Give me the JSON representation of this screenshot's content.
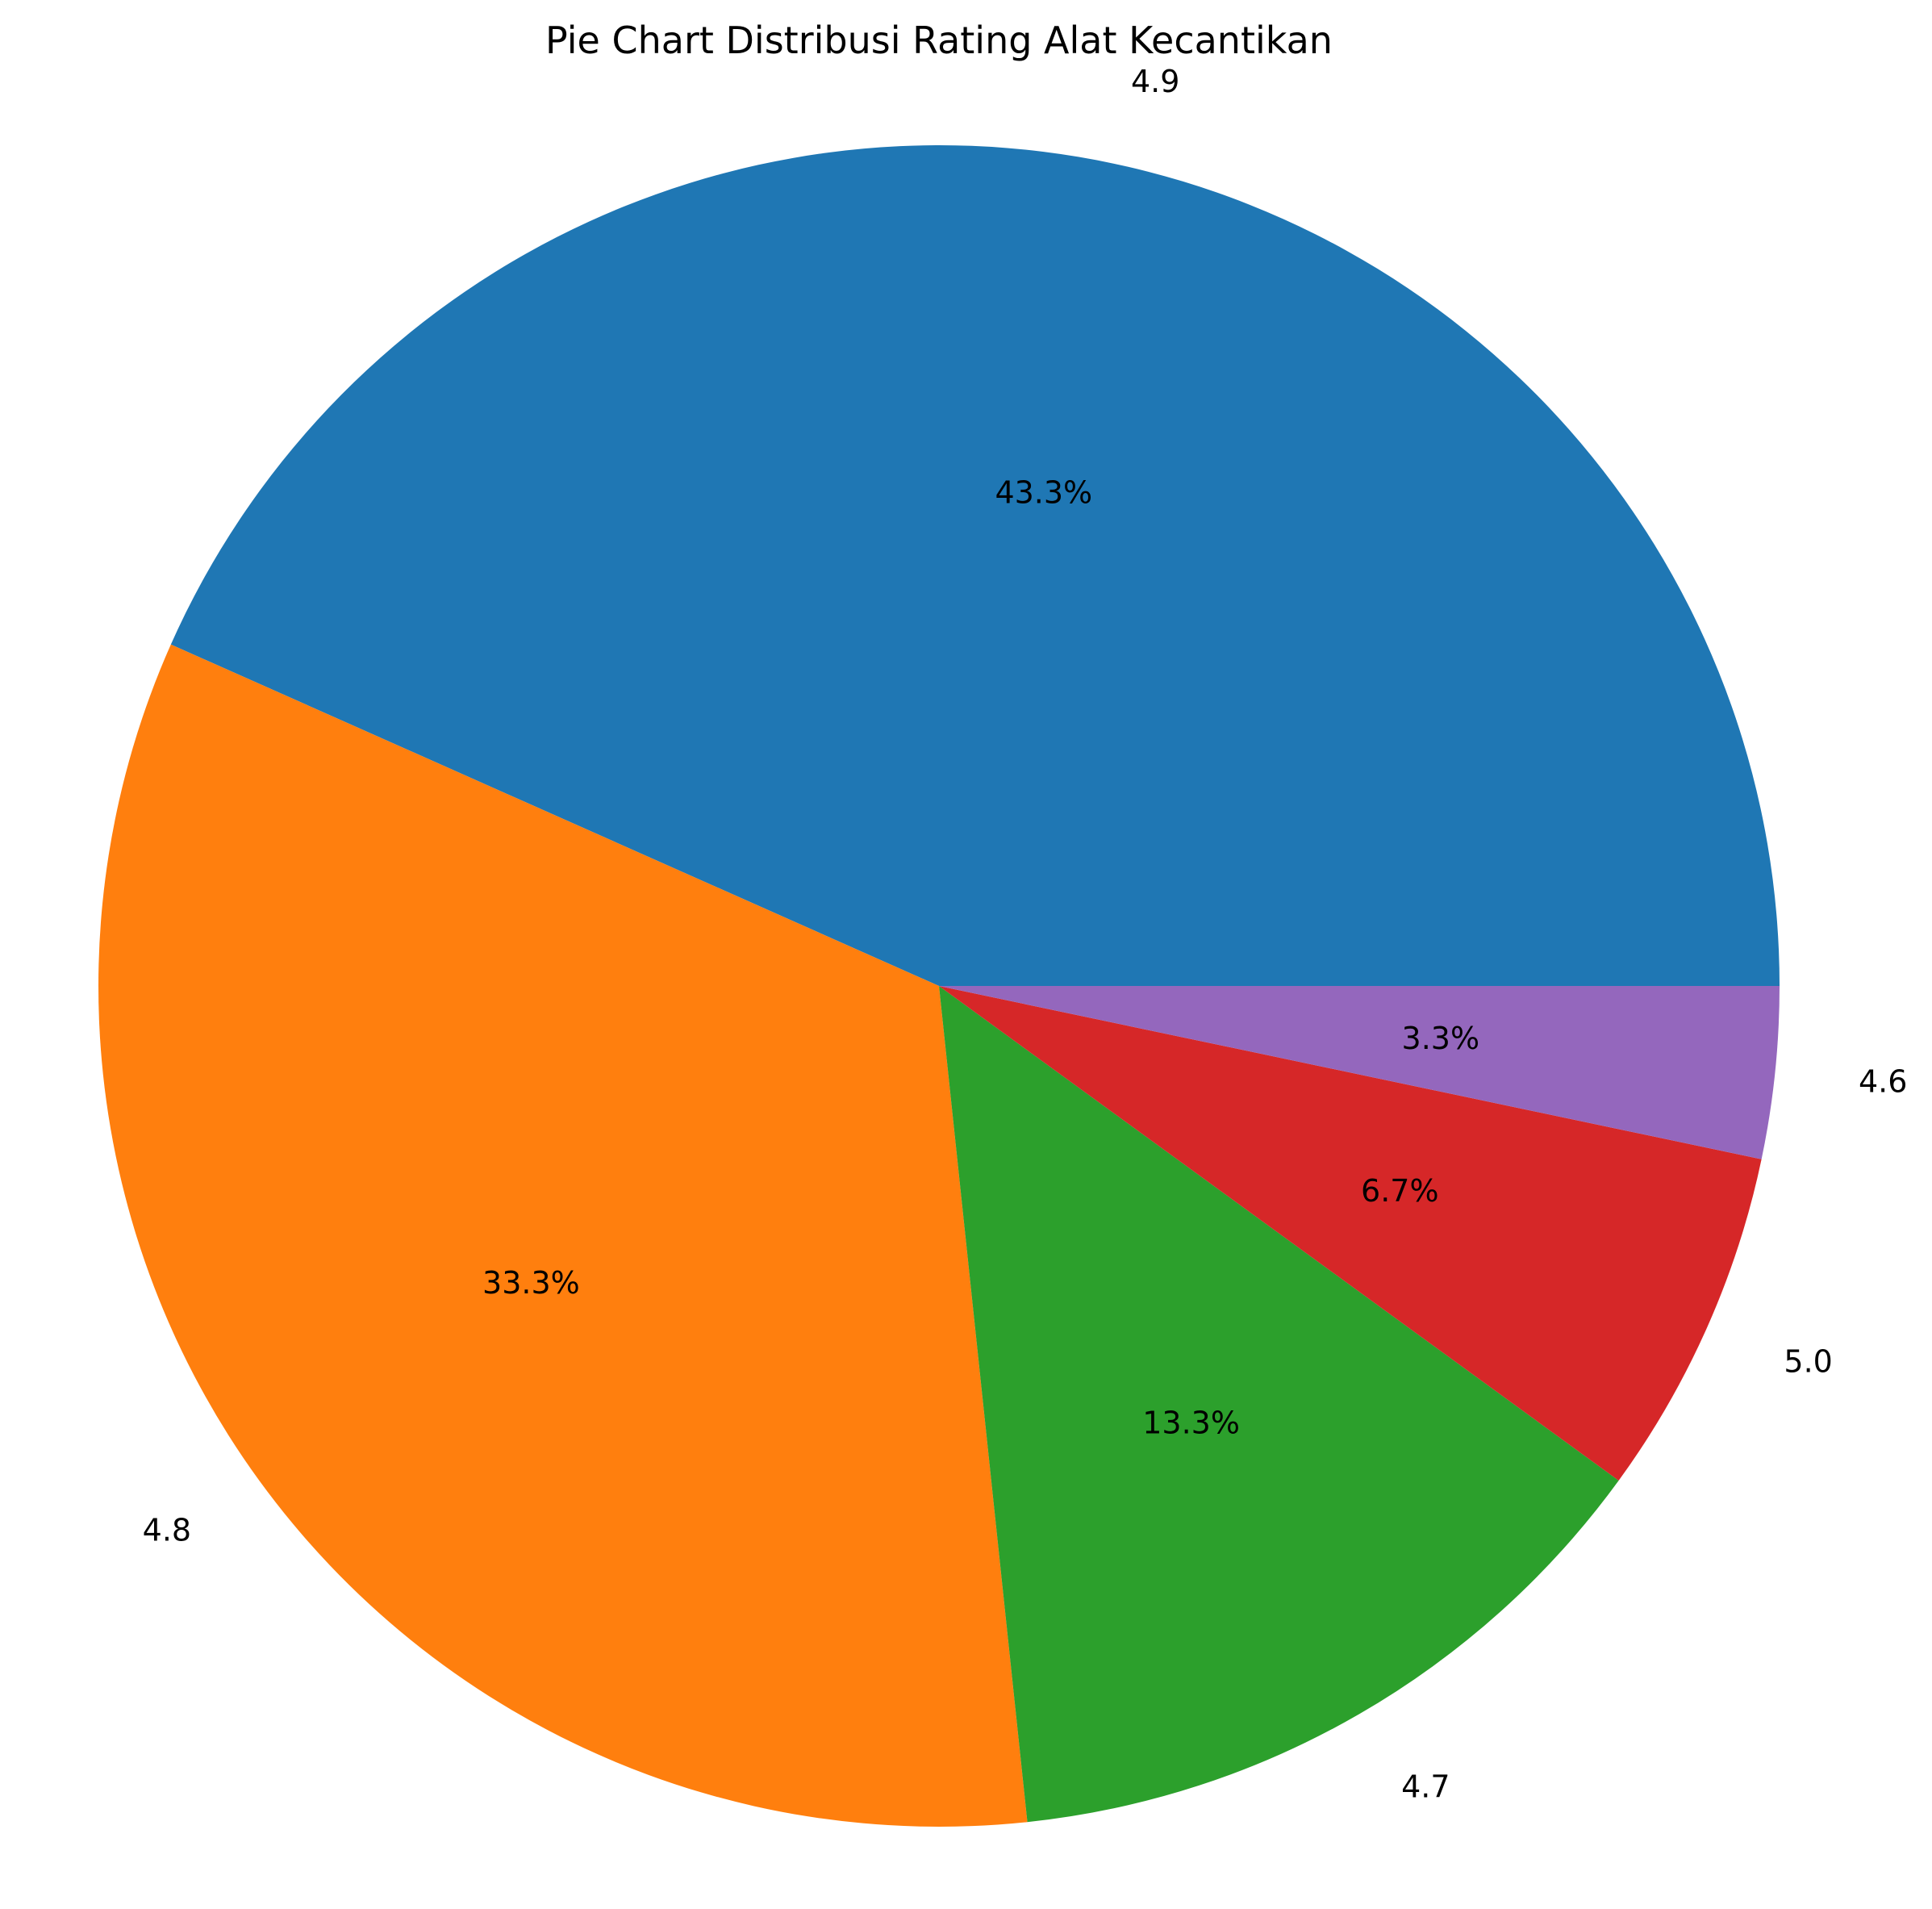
{
  "chart_data": {
    "type": "pie",
    "title": "Pie Chart Distribusi Rating Alat Kecantikan",
    "start_angle_deg": 0,
    "direction": "counterclockwise",
    "slices": [
      {
        "label": "4.9",
        "value": 43.3,
        "pct_label": "43.3%",
        "color": "#1f77b4"
      },
      {
        "label": "4.8",
        "value": 33.3,
        "pct_label": "33.3%",
        "color": "#ff7f0e"
      },
      {
        "label": "4.7",
        "value": 13.3,
        "pct_label": "13.3%",
        "color": "#2ca02c"
      },
      {
        "label": "5.0",
        "value": 6.7,
        "pct_label": "6.7%",
        "color": "#d62728"
      },
      {
        "label": "4.6",
        "value": 3.3,
        "pct_label": "3.3%",
        "color": "#9467bd"
      }
    ]
  }
}
